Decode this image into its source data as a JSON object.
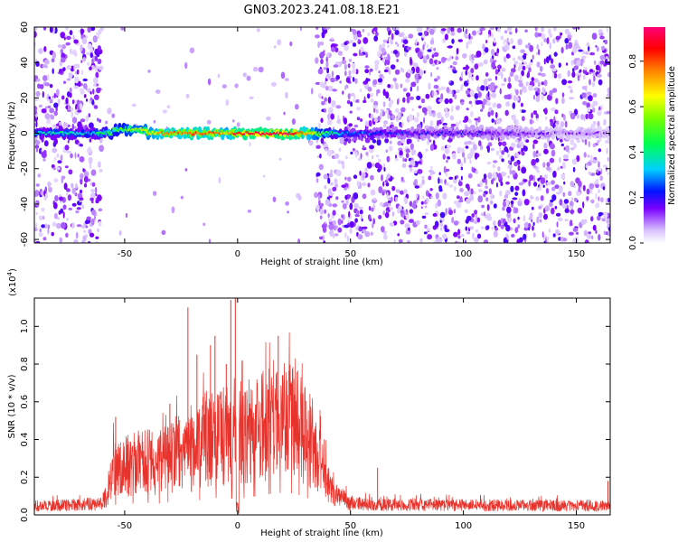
{
  "title": "GN03.2023.241.08.18.E21",
  "chart_data": [
    {
      "type": "heatmap",
      "xlabel": "Height of straight line (km)",
      "ylabel": "Frequency (Hz)",
      "xlim": [
        -90,
        165
      ],
      "ylim": [
        -62,
        60
      ],
      "xticks": [
        -50,
        0,
        50,
        100,
        150
      ],
      "yticks": [
        -60,
        -40,
        -20,
        0,
        20,
        40,
        60
      ],
      "colorbar": {
        "label": "Normalized spectral amplitude",
        "range": [
          0,
          0.95
        ],
        "ticks": [
          0.0,
          0.2,
          0.4,
          0.6,
          0.8
        ]
      },
      "regions": [
        {
          "x": [
            -90,
            -60
          ],
          "fill": "dense speckle"
        },
        {
          "x": [
            -60,
            35
          ],
          "fill": "sparse speckle"
        },
        {
          "x": [
            35,
            165
          ],
          "fill": "dense speckle"
        }
      ],
      "ridge": {
        "frequency": 0,
        "points": [
          {
            "x": -85,
            "amp": 0.35
          },
          {
            "x": -75,
            "amp": 0.38
          },
          {
            "x": -65,
            "amp": 0.33
          },
          {
            "x": -58,
            "amp": 0.45
          },
          {
            "x": -50,
            "amp": 0.55
          },
          {
            "x": -45,
            "amp": 0.62
          },
          {
            "x": -40,
            "amp": 0.65
          },
          {
            "x": -35,
            "amp": 0.75
          },
          {
            "x": -30,
            "amp": 0.82
          },
          {
            "x": -25,
            "amp": 0.78
          },
          {
            "x": -20,
            "amp": 0.85
          },
          {
            "x": -15,
            "amp": 0.8
          },
          {
            "x": -10,
            "amp": 0.88
          },
          {
            "x": -5,
            "amp": 0.7
          },
          {
            "x": 0,
            "amp": 0.92
          },
          {
            "x": 5,
            "amp": 0.94
          },
          {
            "x": 10,
            "amp": 0.95
          },
          {
            "x": 15,
            "amp": 0.93
          },
          {
            "x": 20,
            "amp": 0.95
          },
          {
            "x": 25,
            "amp": 0.92
          },
          {
            "x": 30,
            "amp": 0.8
          },
          {
            "x": 35,
            "amp": 0.62
          },
          {
            "x": 40,
            "amp": 0.45
          },
          {
            "x": 50,
            "amp": 0.3
          },
          {
            "x": 60,
            "amp": 0.24
          },
          {
            "x": 80,
            "amp": 0.2
          },
          {
            "x": 100,
            "amp": 0.18
          },
          {
            "x": 120,
            "amp": 0.16
          },
          {
            "x": 140,
            "amp": 0.12
          },
          {
            "x": 160,
            "amp": 0.1
          }
        ]
      }
    },
    {
      "type": "line",
      "xlabel": "Height of straight line (km)",
      "ylabel": "SNR (10 * v/v)",
      "multiplier": "(x10",
      "multiplier_exp": "4",
      "multiplier_close": ")",
      "xlim": [
        -90,
        165
      ],
      "ylim": [
        0,
        1.15
      ],
      "xticks": [
        -50,
        0,
        50,
        100,
        150
      ],
      "yticks": [
        0.0,
        0.2,
        0.4,
        0.6,
        0.8,
        1.0
      ],
      "color": "#e8332c",
      "envelope": [
        {
          "x": -90,
          "y": 0.07
        },
        {
          "x": -70,
          "y": 0.08
        },
        {
          "x": -60,
          "y": 0.09
        },
        {
          "x": -57,
          "y": 0.2
        },
        {
          "x": -55,
          "y": 0.35
        },
        {
          "x": -50,
          "y": 0.38
        },
        {
          "x": -45,
          "y": 0.4
        },
        {
          "x": -40,
          "y": 0.42
        },
        {
          "x": -35,
          "y": 0.4
        },
        {
          "x": -30,
          "y": 0.45
        },
        {
          "x": -25,
          "y": 0.5
        },
        {
          "x": -20,
          "y": 0.48
        },
        {
          "x": -15,
          "y": 0.55
        },
        {
          "x": -10,
          "y": 0.6
        },
        {
          "x": -5,
          "y": 0.62
        },
        {
          "x": 0,
          "y": 0.55
        },
        {
          "x": 5,
          "y": 0.62
        },
        {
          "x": 10,
          "y": 0.68
        },
        {
          "x": 15,
          "y": 0.75
        },
        {
          "x": 20,
          "y": 0.78
        },
        {
          "x": 25,
          "y": 0.76
        },
        {
          "x": 30,
          "y": 0.62
        },
        {
          "x": 35,
          "y": 0.45
        },
        {
          "x": 40,
          "y": 0.25
        },
        {
          "x": 45,
          "y": 0.14
        },
        {
          "x": 50,
          "y": 0.09
        },
        {
          "x": 60,
          "y": 0.08
        },
        {
          "x": 165,
          "y": 0.07
        }
      ],
      "spikes": [
        {
          "x": -54,
          "y": 0.52
        },
        {
          "x": -30,
          "y": 0.59
        },
        {
          "x": -22,
          "y": 1.1
        },
        {
          "x": -18,
          "y": 0.85
        },
        {
          "x": -12,
          "y": 0.9
        },
        {
          "x": -10,
          "y": 0.95
        },
        {
          "x": -5,
          "y": 0.8
        },
        {
          "x": -3,
          "y": 1.14
        },
        {
          "x": -1,
          "y": 1.15
        },
        {
          "x": 2,
          "y": 0.82
        },
        {
          "x": 18,
          "y": 0.95
        },
        {
          "x": 62,
          "y": 0.25
        },
        {
          "x": 164,
          "y": 0.18
        }
      ]
    }
  ]
}
